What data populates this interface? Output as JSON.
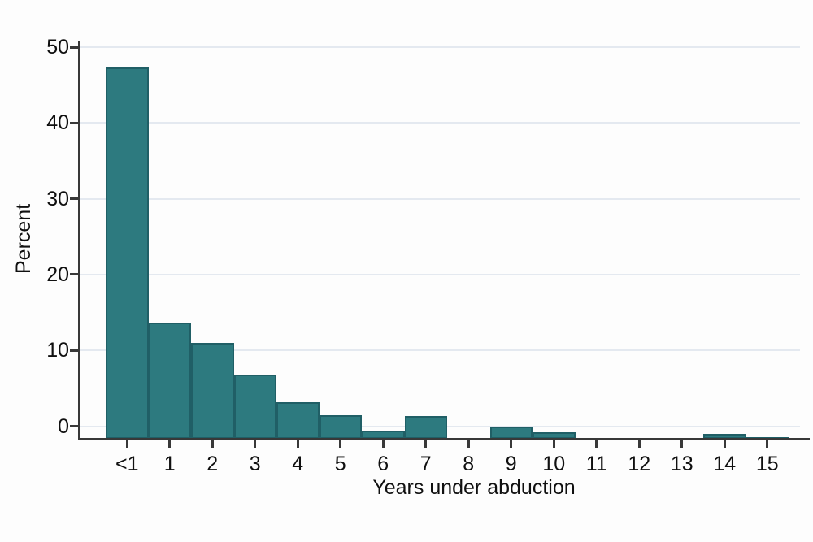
{
  "chart_data": {
    "type": "bar",
    "variant": "histogram",
    "title": "",
    "xlabel": "Years under abduction",
    "ylabel": "Percent",
    "categories": [
      "<1",
      "1",
      "2",
      "3",
      "4",
      "5",
      "6",
      "7",
      "8",
      "9",
      "10",
      "11",
      "12",
      "13",
      "14",
      "15"
    ],
    "values_top_edge_pct": [
      47.3,
      13.7,
      11.0,
      6.8,
      3.2,
      1.4,
      -0.6,
      1.3,
      null,
      0.0,
      -0.8,
      null,
      null,
      null,
      -1.0,
      -1.4
    ],
    "bar_baseline_pct": -1.7,
    "yticks": [
      0,
      10,
      20,
      30,
      40,
      50
    ],
    "ylim": [
      -1.7,
      51.2
    ],
    "grid": "horizontal-only",
    "legend": "none",
    "note": "Bars are anchored on the x-axis line, which sits slightly below the 0 gridline; categories 8, 11, 12 and 13 have no visible bar.",
    "colors": {
      "bar_fill": "#2d7a7f",
      "bar_border": "#205f66",
      "axis_line": "#383838",
      "gridline": "#e4e9f0",
      "text": "#101010",
      "background": "#fdfdfd"
    }
  }
}
